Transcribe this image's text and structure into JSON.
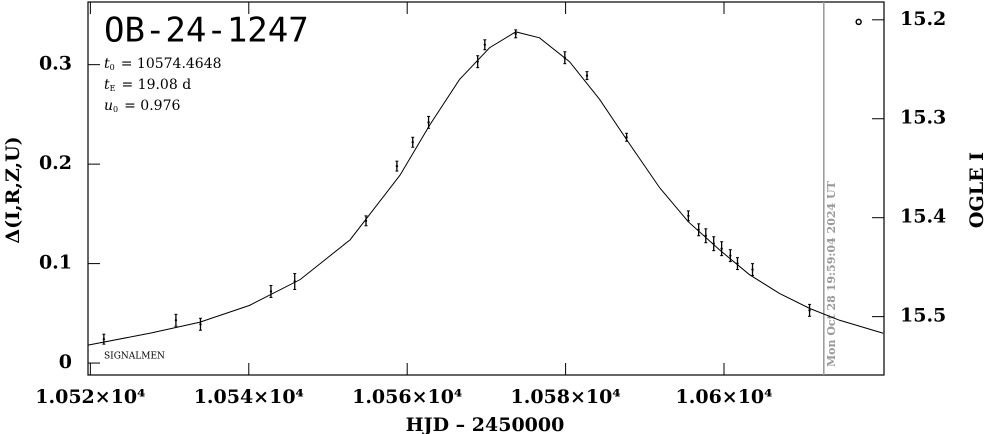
{
  "chart_data": {
    "type": "scatter",
    "title": "OB-24-1247",
    "parameters": [
      {
        "symbol": "t",
        "sub": "0",
        "text": "= 10574.4648"
      },
      {
        "symbol": "t",
        "sub": "E",
        "text": "= 19.08  d"
      },
      {
        "symbol": "u",
        "sub": "0",
        "text": "= 0.976"
      }
    ],
    "corner_label": "SIGNALMEN",
    "xlabel": "HJD – 2450000",
    "ylabel": "Δ(I,R,Z,U)",
    "y2label": "OGLE I",
    "xlim": [
      10519.7,
      10620.2
    ],
    "ylim": [
      -0.012,
      0.363
    ],
    "y2lim": [
      15.559,
      15.182
    ],
    "xticks": [
      {
        "value": 10520,
        "label": "1.052×10⁴"
      },
      {
        "value": 10540,
        "label": "1.054×10⁴"
      },
      {
        "value": 10560,
        "label": "1.056×10⁴"
      },
      {
        "value": 10580,
        "label": "1.058×10⁴"
      },
      {
        "value": 10600,
        "label": "1.06×10⁴"
      }
    ],
    "yticks": [
      0,
      0.1,
      0.2,
      0.3
    ],
    "y2ticks": [
      15.2,
      15.3,
      15.4,
      15.5
    ],
    "date_marker": {
      "x": 10612.6,
      "label": "Mon Oct 28 19:59:04 2024 UT",
      "color": "#999999"
    },
    "series": [
      {
        "color": "#000000",
        "x": [
          10521.7,
          10530.8,
          10533.9,
          10542.8,
          10545.8,
          10554.8,
          10558.7,
          10560.7,
          10562.7,
          10568.9,
          10569.8,
          10573.7,
          10579.9,
          10582.7,
          10587.7,
          10595.5,
          10596.8,
          10597.7,
          10598.7,
          10599.7,
          10600.8,
          10601.7,
          10603.6,
          10610.8
        ],
        "values": [
          0.024,
          0.043,
          0.039,
          0.072,
          0.082,
          0.143,
          0.198,
          0.222,
          0.242,
          0.303,
          0.32,
          0.331,
          0.307,
          0.289,
          0.227,
          0.148,
          0.134,
          0.128,
          0.12,
          0.115,
          0.108,
          0.1,
          0.094,
          0.053
        ],
        "errors": [
          0.005,
          0.006,
          0.006,
          0.006,
          0.008,
          0.005,
          0.005,
          0.005,
          0.006,
          0.006,
          0.005,
          0.004,
          0.006,
          0.004,
          0.004,
          0.005,
          0.006,
          0.007,
          0.007,
          0.007,
          0.006,
          0.006,
          0.006,
          0.006
        ]
      },
      {
        "color": "#000000",
        "marker": "open-circle",
        "x": [
          10617.0
        ],
        "values": [
          0.343
        ]
      }
    ],
    "model": {
      "color": "#000000",
      "x": [
        10519.7,
        10527.5,
        10533.8,
        10540.1,
        10546.5,
        10552.8,
        10559.1,
        10562.9,
        10566.6,
        10570.4,
        10573.7,
        10576.7,
        10580.5,
        10584.3,
        10588.1,
        10591.9,
        10595.5,
        10599.4,
        10603.2,
        10607.0,
        10610.8,
        10614.6,
        10620.1
      ],
      "values": [
        0.018,
        0.03,
        0.041,
        0.058,
        0.084,
        0.124,
        0.189,
        0.24,
        0.285,
        0.317,
        0.333,
        0.327,
        0.303,
        0.265,
        0.22,
        0.176,
        0.142,
        0.114,
        0.089,
        0.07,
        0.055,
        0.043,
        0.03
      ]
    }
  }
}
